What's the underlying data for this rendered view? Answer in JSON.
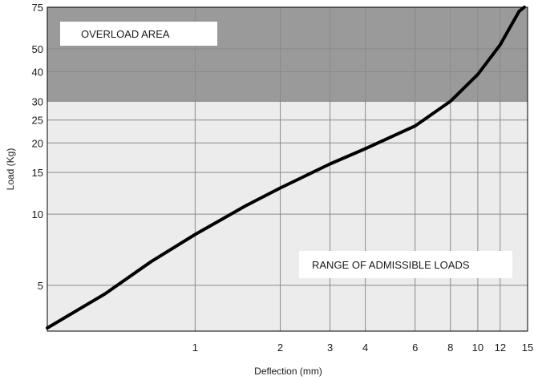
{
  "chart_data": {
    "type": "line",
    "title": "",
    "xlabel": "Deflection (mm)",
    "ylabel": "Load (Kg)",
    "x_scale": "log",
    "y_scale": "log",
    "xlim": [
      0.3,
      15
    ],
    "ylim": [
      3.2,
      75
    ],
    "x_ticks": [
      1,
      2,
      3,
      4,
      6,
      8,
      10,
      12,
      15
    ],
    "y_ticks": [
      5,
      10,
      15,
      20,
      25,
      30,
      40,
      50,
      75
    ],
    "grid": true,
    "regions": [
      {
        "label": "OVERLOAD AREA",
        "y_from": 30,
        "y_to": 75,
        "color": "#9a9a9a"
      },
      {
        "label": "RANGE OF ADMISSIBLE LOADS",
        "y_from": 3.2,
        "y_to": 30,
        "color": "#ececec"
      }
    ],
    "series": [
      {
        "color": "#000000",
        "points": [
          {
            "x": 0.3,
            "y": 3.3
          },
          {
            "x": 0.48,
            "y": 4.6
          },
          {
            "x": 0.7,
            "y": 6.3
          },
          {
            "x": 1.0,
            "y": 8.2
          },
          {
            "x": 1.5,
            "y": 10.8
          },
          {
            "x": 2.0,
            "y": 12.9
          },
          {
            "x": 3.0,
            "y": 16.3
          },
          {
            "x": 4.0,
            "y": 18.9
          },
          {
            "x": 6.0,
            "y": 23.6
          },
          {
            "x": 8.0,
            "y": 30.0
          },
          {
            "x": 10.0,
            "y": 39.0
          },
          {
            "x": 12.0,
            "y": 52.0
          },
          {
            "x": 14.0,
            "y": 72.0
          },
          {
            "x": 14.6,
            "y": 77.0
          }
        ]
      }
    ]
  }
}
